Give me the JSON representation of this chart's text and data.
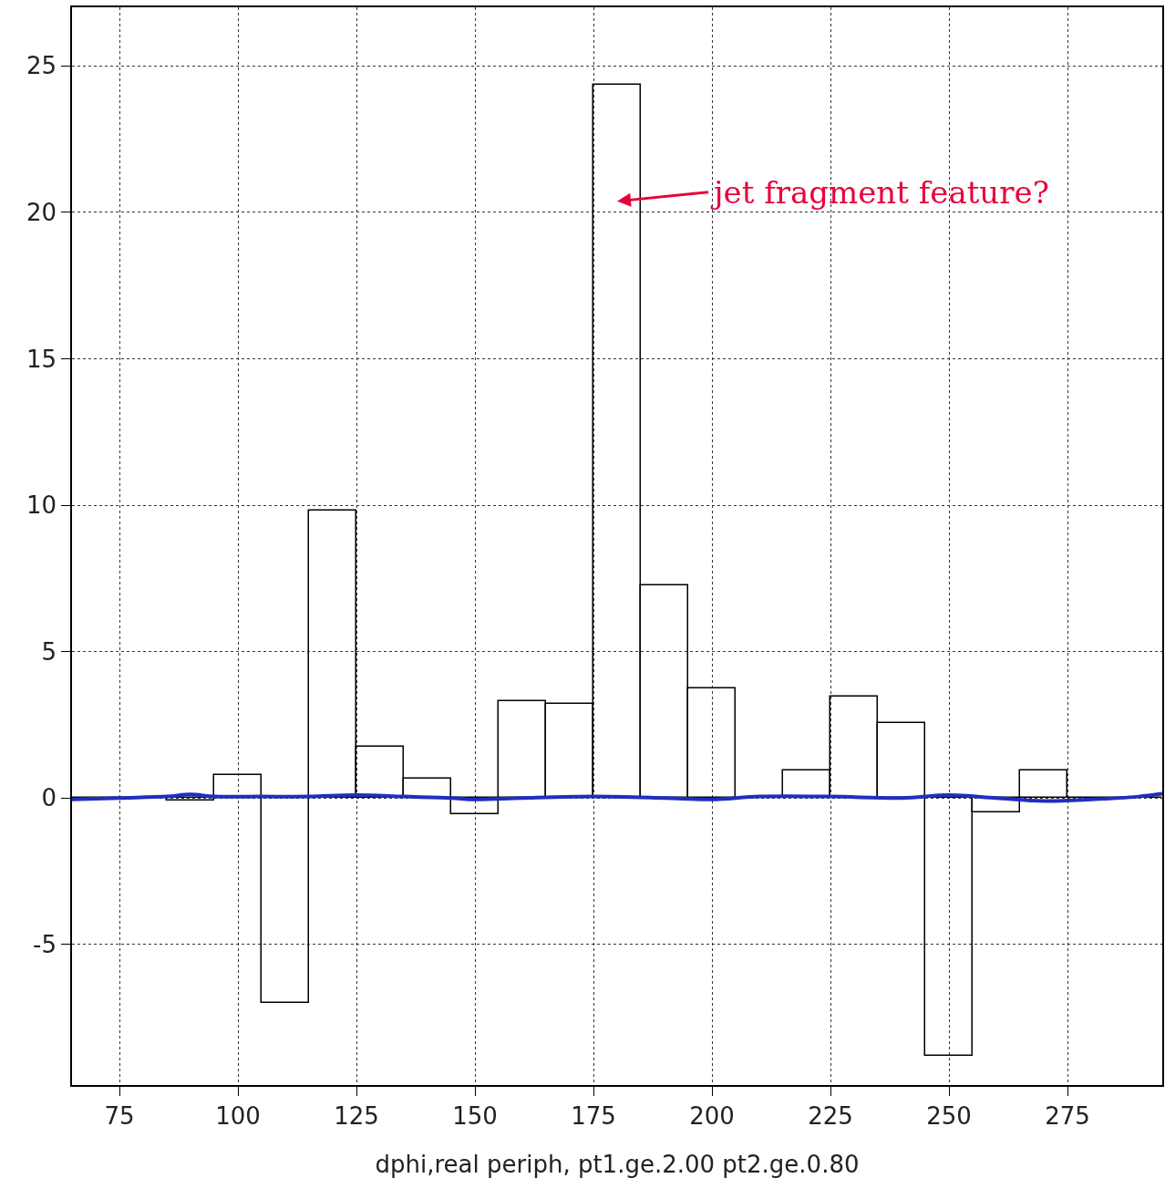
{
  "chart_data": {
    "type": "histogram",
    "xlabel": "dphi,real periph, pt1.ge.2.00 pt2.ge.0.80",
    "bins": [
      65,
      75,
      85,
      95,
      105,
      115,
      125,
      135,
      145,
      155,
      165,
      175,
      185,
      195,
      205,
      215,
      225,
      235,
      245,
      255,
      265,
      275,
      285,
      295
    ],
    "values": [
      0,
      0,
      -0.1,
      0.8,
      -7.0,
      9.8,
      1.75,
      0.65,
      -0.55,
      3.3,
      3.2,
      24.35,
      7.25,
      3.75,
      0,
      0.95,
      3.45,
      2.55,
      -8.8,
      -0.5,
      0.95,
      0,
      0
    ],
    "color": "#000000",
    "series": [
      {
        "type": "line",
        "color": "#1f2fbf",
        "x": [
          65,
          75,
          85,
          90,
          95,
          105,
          115,
          125,
          135,
          145,
          150,
          160,
          175,
          190,
          200,
          210,
          225,
          240,
          250,
          260,
          270,
          280,
          290,
          295
        ],
        "values": [
          -0.05,
          0,
          0.05,
          0.12,
          0.05,
          0.05,
          0.05,
          0.1,
          0.05,
          0,
          -0.05,
          0,
          0.05,
          0,
          -0.05,
          0.05,
          0.05,
          0,
          0.1,
          0,
          -0.1,
          -0.05,
          0.05,
          0.15
        ]
      }
    ],
    "xlim": [
      65,
      295
    ],
    "ylim": [
      -9.8,
      27
    ],
    "xticks": [
      75,
      100,
      125,
      150,
      175,
      200,
      225,
      250,
      275
    ],
    "yticks": [
      -5,
      0,
      5,
      10,
      15,
      20,
      25
    ],
    "grid": true,
    "annotations": [
      "jet fragment feature?"
    ]
  }
}
